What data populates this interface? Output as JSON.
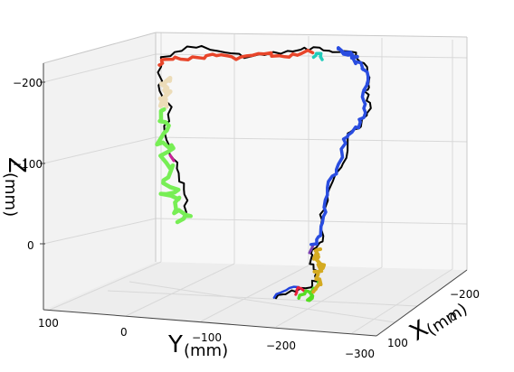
{
  "chart_data": {
    "type": "line3d",
    "xlabel_main": "X",
    "xlabel_unit": "(mm)",
    "ylabel_main": "Y",
    "ylabel_unit": "(mm)",
    "zlabel_main": "Z",
    "zlabel_unit": "(mm)",
    "x_ticks": [
      "100",
      "0",
      "−100",
      "−200"
    ],
    "y_ticks": [
      "100",
      "0",
      "−100",
      "−200",
      "−300"
    ],
    "z_ticks": [
      "−200",
      "−100",
      "0"
    ],
    "grid": true,
    "reference_color": "#000000",
    "segment_colors": {
      "start_blue": "#2244dd",
      "start_red": "#e8203a",
      "green_low": "#55dd22",
      "gold": "#d4aa20",
      "purple": "#7a40b0",
      "blue_main": "#2a4de0",
      "cyan": "#22ccbb",
      "orange_red": "#e8452a",
      "beige": "#ecdcb8",
      "light_green": "#77ee55",
      "magenta": "#cc2299"
    }
  }
}
